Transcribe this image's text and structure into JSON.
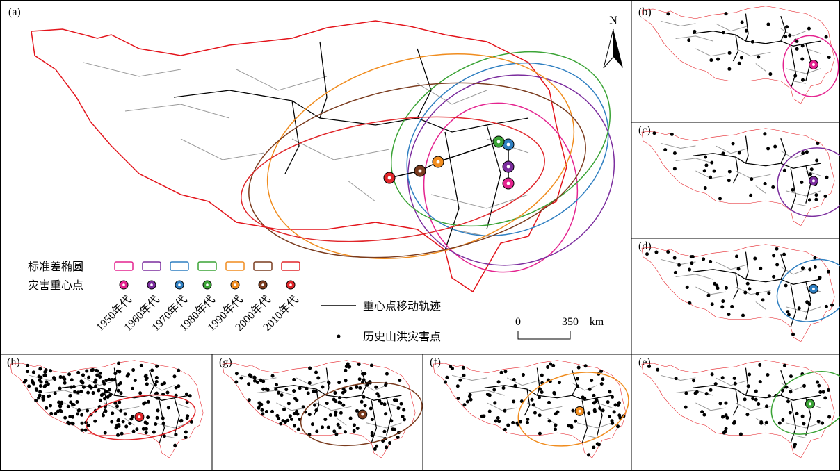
{
  "panels": [
    {
      "label": "(a)"
    },
    {
      "label": "(b)"
    },
    {
      "label": "(c)"
    },
    {
      "label": "(d)"
    },
    {
      "label": "(e)"
    },
    {
      "label": "(f)"
    },
    {
      "label": "(g)"
    },
    {
      "label": "(h)"
    }
  ],
  "north": "N",
  "legend": {
    "ellipse_title": "标准差椭圆",
    "center_title": "灾害重心点",
    "decades": [
      {
        "name": "1950年代",
        "color": "#e4238f"
      },
      {
        "name": "1960年代",
        "color": "#7b2d9e"
      },
      {
        "name": "1970年代",
        "color": "#2f7fc1"
      },
      {
        "name": "1980年代",
        "color": "#3aa335"
      },
      {
        "name": "1990年代",
        "color": "#f08c1e"
      },
      {
        "name": "2000年代",
        "color": "#7a3b1e"
      },
      {
        "name": "2010年代",
        "color": "#e0262a"
      }
    ],
    "track": "重心点移动轨迹",
    "points": "历史山洪灾害点"
  },
  "scale": {
    "zero": "0",
    "distance": "350",
    "unit": "km"
  }
}
